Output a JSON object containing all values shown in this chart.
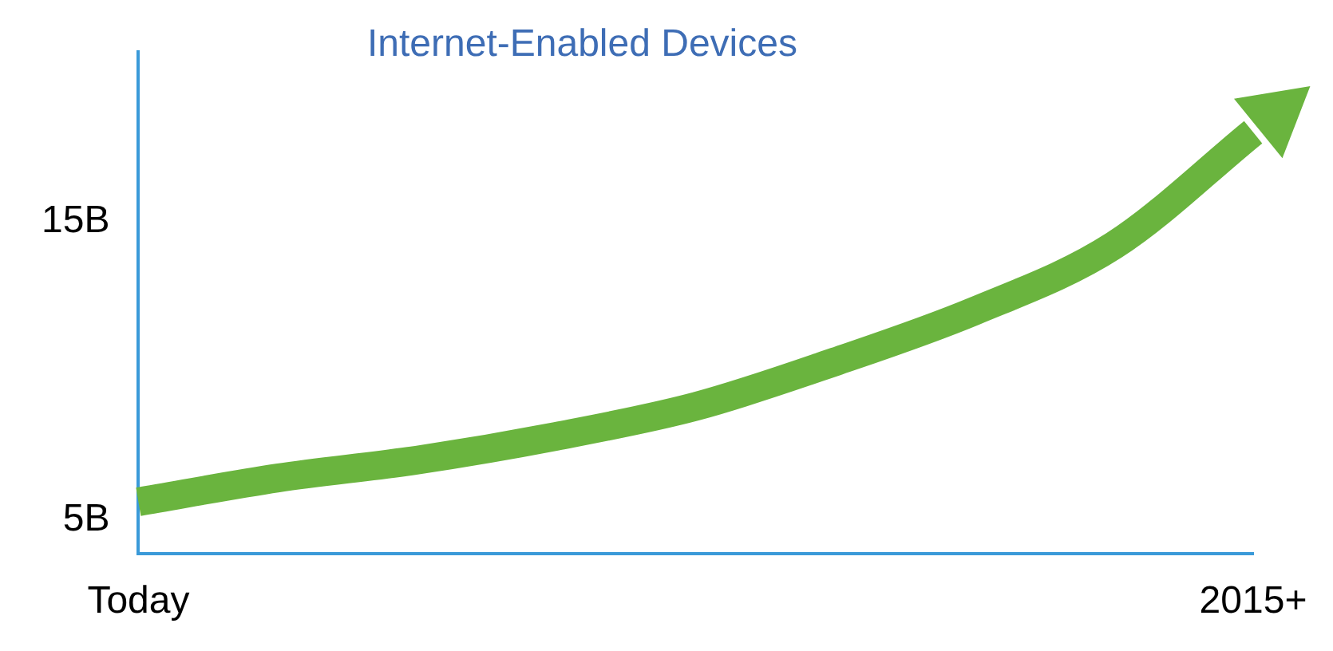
{
  "chart_data": {
    "type": "line",
    "title": "Internet-Enabled Devices",
    "categories": [
      "Today",
      null,
      null,
      null,
      null,
      null,
      null,
      null,
      "2015+"
    ],
    "series": [
      {
        "color": "#6ab43e",
        "values": [
          5.6,
          6.4,
          7.0,
          7.8,
          8.8,
          10.3,
          12.0,
          14.2,
          18.0
        ]
      }
    ],
    "ylim": [
      3.85,
      20.7
    ],
    "yticks": [
      {
        "value": 5,
        "label": "5B"
      },
      {
        "value": 15,
        "label": "15B"
      }
    ],
    "grid": false,
    "legend": false,
    "marker": "none",
    "line_style": "solid"
  }
}
